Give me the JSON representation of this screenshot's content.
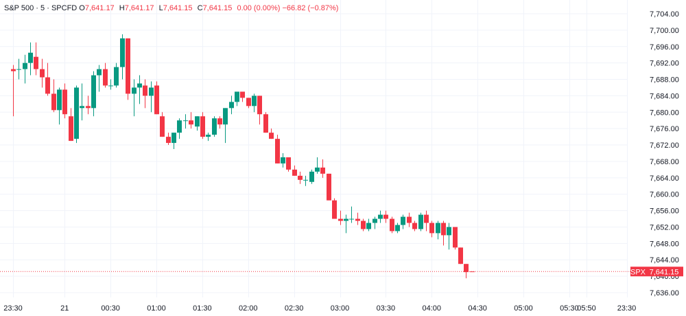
{
  "header": {
    "symbol": "S&P 500",
    "interval": "5",
    "source": "SPCFD",
    "open_label": "O",
    "open": "7,641.17",
    "high_label": "H",
    "high": "7,641.17",
    "low_label": "L",
    "low": "7,641.15",
    "close_label": "C",
    "close": "7,641.15",
    "change": "0.00 (0.00%)",
    "change_day": "−66.82 (−0.87%)"
  },
  "colors": {
    "up": "#089981",
    "down": "#f23645",
    "grid": "#f0f3fa",
    "text": "#131722"
  },
  "price_badge": {
    "symbol": "SPX",
    "price": "7,641.15"
  },
  "chart_data": {
    "type": "candlestick",
    "title": "S&P 500 · 5 · SPCFD",
    "ylim": [
      7634,
      7706
    ],
    "y_ticks": [
      "7,704.00",
      "7,700.00",
      "7,696.00",
      "7,692.00",
      "7,688.00",
      "7,684.00",
      "7,680.00",
      "7,676.00",
      "7,672.00",
      "7,668.00",
      "7,664.00",
      "7,660.00",
      "7,656.00",
      "7,652.00",
      "7,648.00",
      "7,644.00",
      "7,640.00",
      "7,636.00"
    ],
    "y_tick_values": [
      7704,
      7700,
      7696,
      7692,
      7688,
      7684,
      7680,
      7676,
      7672,
      7668,
      7664,
      7660,
      7656,
      7652,
      7648,
      7644,
      7640,
      7636
    ],
    "x_ticks": [
      "23:30",
      "21",
      "00:30",
      "01:00",
      "01:30",
      "02:00",
      "02:30",
      "03:00",
      "03:30",
      "04:00",
      "04:30",
      "05:00",
      "05:30",
      "05:50",
      "23:30"
    ],
    "x_tick_bar_index": [
      0,
      9,
      17,
      25,
      33,
      41,
      49,
      57,
      65,
      73,
      81,
      89,
      97,
      100,
      107
    ],
    "last_price": 7641.15,
    "candles": [
      {
        "o": 7690.5,
        "h": 7691.5,
        "l": 7679.0,
        "c": 7690.0
      },
      {
        "o": 7690.5,
        "h": 7693.0,
        "l": 7688.0,
        "c": 7690.5
      },
      {
        "o": 7690.5,
        "h": 7694.0,
        "l": 7687.0,
        "c": 7692.0
      },
      {
        "o": 7692.0,
        "h": 7697.0,
        "l": 7689.0,
        "c": 7694.5
      },
      {
        "o": 7693.5,
        "h": 7697.0,
        "l": 7689.0,
        "c": 7690.5
      },
      {
        "o": 7690.5,
        "h": 7693.0,
        "l": 7686.0,
        "c": 7688.5
      },
      {
        "o": 7688.5,
        "h": 7692.0,
        "l": 7684.0,
        "c": 7684.5
      },
      {
        "o": 7684.5,
        "h": 7688.0,
        "l": 7680.0,
        "c": 7680.5
      },
      {
        "o": 7680.5,
        "h": 7686.0,
        "l": 7677.0,
        "c": 7685.5
      },
      {
        "o": 7685.5,
        "h": 7687.0,
        "l": 7678.5,
        "c": 7679.5
      },
      {
        "o": 7679.0,
        "h": 7681.0,
        "l": 7673.0,
        "c": 7673.0
      },
      {
        "o": 7673.5,
        "h": 7686.5,
        "l": 7672.5,
        "c": 7686.0
      },
      {
        "o": 7681.0,
        "h": 7687.0,
        "l": 7678.0,
        "c": 7681.5
      },
      {
        "o": 7681.5,
        "h": 7684.0,
        "l": 7679.5,
        "c": 7681.0
      },
      {
        "o": 7681.0,
        "h": 7690.0,
        "l": 7679.0,
        "c": 7689.0
      },
      {
        "o": 7689.0,
        "h": 7691.5,
        "l": 7685.0,
        "c": 7690.5
      },
      {
        "o": 7690.5,
        "h": 7692.0,
        "l": 7686.0,
        "c": 7686.5
      },
      {
        "o": 7686.5,
        "h": 7688.0,
        "l": 7685.5,
        "c": 7686.5
      },
      {
        "o": 7686.5,
        "h": 7692.0,
        "l": 7686.0,
        "c": 7691.0
      },
      {
        "o": 7691.0,
        "h": 7699.0,
        "l": 7688.0,
        "c": 7698.0
      },
      {
        "o": 7698.0,
        "h": 7698.0,
        "l": 7683.0,
        "c": 7684.5
      },
      {
        "o": 7684.5,
        "h": 7688.0,
        "l": 7679.0,
        "c": 7686.0
      },
      {
        "o": 7686.0,
        "h": 7689.0,
        "l": 7682.0,
        "c": 7687.0
      },
      {
        "o": 7686.5,
        "h": 7688.0,
        "l": 7681.0,
        "c": 7684.0
      },
      {
        "o": 7684.0,
        "h": 7687.5,
        "l": 7680.0,
        "c": 7686.0
      },
      {
        "o": 7686.5,
        "h": 7687.5,
        "l": 7679.5,
        "c": 7679.5
      },
      {
        "o": 7679.0,
        "h": 7680.0,
        "l": 7674.0,
        "c": 7674.0
      },
      {
        "o": 7674.0,
        "h": 7675.0,
        "l": 7672.0,
        "c": 7672.5
      },
      {
        "o": 7672.5,
        "h": 7675.0,
        "l": 7671.0,
        "c": 7675.0
      },
      {
        "o": 7675.0,
        "h": 7678.5,
        "l": 7673.5,
        "c": 7678.0
      },
      {
        "o": 7678.0,
        "h": 7679.5,
        "l": 7676.0,
        "c": 7678.0
      },
      {
        "o": 7678.0,
        "h": 7680.0,
        "l": 7676.0,
        "c": 7677.0
      },
      {
        "o": 7676.5,
        "h": 7679.0,
        "l": 7675.5,
        "c": 7679.0
      },
      {
        "o": 7679.0,
        "h": 7680.0,
        "l": 7673.5,
        "c": 7674.0
      },
      {
        "o": 7674.0,
        "h": 7675.0,
        "l": 7673.0,
        "c": 7674.5
      },
      {
        "o": 7674.5,
        "h": 7679.0,
        "l": 7674.0,
        "c": 7678.5
      },
      {
        "o": 7678.5,
        "h": 7679.0,
        "l": 7676.0,
        "c": 7677.0
      },
      {
        "o": 7677.0,
        "h": 7681.0,
        "l": 7672.5,
        "c": 7681.0
      },
      {
        "o": 7681.0,
        "h": 7684.0,
        "l": 7679.5,
        "c": 7682.5
      },
      {
        "o": 7682.5,
        "h": 7685.0,
        "l": 7681.5,
        "c": 7685.0
      },
      {
        "o": 7685.0,
        "h": 7685.0,
        "l": 7682.5,
        "c": 7683.5
      },
      {
        "o": 7683.5,
        "h": 7683.5,
        "l": 7681.0,
        "c": 7681.5
      },
      {
        "o": 7681.5,
        "h": 7684.5,
        "l": 7680.0,
        "c": 7684.0
      },
      {
        "o": 7684.0,
        "h": 7684.0,
        "l": 7677.0,
        "c": 7679.5
      },
      {
        "o": 7679.5,
        "h": 7680.0,
        "l": 7675.0,
        "c": 7675.0
      },
      {
        "o": 7675.0,
        "h": 7676.0,
        "l": 7673.5,
        "c": 7673.5
      },
      {
        "o": 7673.5,
        "h": 7674.5,
        "l": 7667.5,
        "c": 7667.5
      },
      {
        "o": 7667.5,
        "h": 7670.0,
        "l": 7666.5,
        "c": 7669.0
      },
      {
        "o": 7669.0,
        "h": 7669.0,
        "l": 7665.5,
        "c": 7666.0
      },
      {
        "o": 7666.0,
        "h": 7667.0,
        "l": 7664.5,
        "c": 7664.5
      },
      {
        "o": 7664.5,
        "h": 7665.5,
        "l": 7662.5,
        "c": 7663.5
      },
      {
        "o": 7663.5,
        "h": 7664.5,
        "l": 7662.0,
        "c": 7663.5
      },
      {
        "o": 7663.0,
        "h": 7666.0,
        "l": 7662.5,
        "c": 7665.5
      },
      {
        "o": 7665.5,
        "h": 7669.0,
        "l": 7665.0,
        "c": 7666.5
      },
      {
        "o": 7666.5,
        "h": 7668.5,
        "l": 7664.0,
        "c": 7665.0
      },
      {
        "o": 7665.0,
        "h": 7665.0,
        "l": 7658.5,
        "c": 7658.5
      },
      {
        "o": 7658.5,
        "h": 7659.0,
        "l": 7654.0,
        "c": 7654.0
      },
      {
        "o": 7654.0,
        "h": 7656.0,
        "l": 7652.5,
        "c": 7653.5
      },
      {
        "o": 7653.5,
        "h": 7655.0,
        "l": 7650.5,
        "c": 7654.0
      },
      {
        "o": 7654.0,
        "h": 7657.0,
        "l": 7653.0,
        "c": 7654.0
      },
      {
        "o": 7654.0,
        "h": 7655.5,
        "l": 7652.5,
        "c": 7653.5
      },
      {
        "o": 7653.5,
        "h": 7654.0,
        "l": 7651.0,
        "c": 7651.5
      },
      {
        "o": 7651.5,
        "h": 7654.0,
        "l": 7651.0,
        "c": 7653.0
      },
      {
        "o": 7653.0,
        "h": 7654.5,
        "l": 7651.5,
        "c": 7654.0
      },
      {
        "o": 7654.0,
        "h": 7656.0,
        "l": 7653.0,
        "c": 7655.0
      },
      {
        "o": 7655.0,
        "h": 7656.0,
        "l": 7653.0,
        "c": 7654.0
      },
      {
        "o": 7654.0,
        "h": 7654.5,
        "l": 7650.5,
        "c": 7651.0
      },
      {
        "o": 7651.0,
        "h": 7653.0,
        "l": 7650.5,
        "c": 7652.5
      },
      {
        "o": 7652.5,
        "h": 7655.0,
        "l": 7651.5,
        "c": 7654.5
      },
      {
        "o": 7654.5,
        "h": 7655.5,
        "l": 7652.0,
        "c": 7653.0
      },
      {
        "o": 7653.0,
        "h": 7653.5,
        "l": 7651.0,
        "c": 7651.5
      },
      {
        "o": 7651.5,
        "h": 7655.5,
        "l": 7651.0,
        "c": 7655.0
      },
      {
        "o": 7655.0,
        "h": 7656.0,
        "l": 7651.0,
        "c": 7653.0
      },
      {
        "o": 7653.0,
        "h": 7653.5,
        "l": 7649.5,
        "c": 7650.5
      },
      {
        "o": 7650.5,
        "h": 7653.5,
        "l": 7649.0,
        "c": 7653.0
      },
      {
        "o": 7653.0,
        "h": 7653.5,
        "l": 7647.5,
        "c": 7650.0
      },
      {
        "o": 7650.0,
        "h": 7653.0,
        "l": 7646.5,
        "c": 7652.0
      },
      {
        "o": 7652.0,
        "h": 7652.0,
        "l": 7646.5,
        "c": 7647.0
      },
      {
        "o": 7647.0,
        "h": 7647.0,
        "l": 7643.0,
        "c": 7643.0
      },
      {
        "o": 7643.0,
        "h": 7643.0,
        "l": 7639.5,
        "c": 7641.0
      },
      {
        "o": 7641.17,
        "h": 7641.17,
        "l": 7641.15,
        "c": 7641.15
      }
    ]
  }
}
